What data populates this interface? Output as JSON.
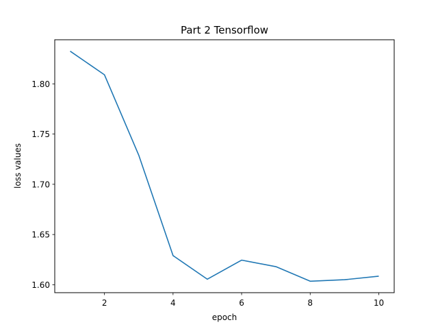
{
  "chart_data": {
    "type": "line",
    "title": "Part 2 Tensorflow",
    "xlabel": "epoch",
    "ylabel": "loss values",
    "x": [
      1,
      2,
      3,
      4,
      5,
      6,
      7,
      8,
      9,
      10
    ],
    "series": [
      {
        "values": [
          1.8325,
          1.809,
          1.729,
          1.629,
          1.6055,
          1.6245,
          1.618,
          1.6035,
          1.605,
          1.6085
        ],
        "color": "#1f77b4"
      }
    ],
    "xlim": [
      0.55,
      10.45
    ],
    "ylim": [
      1.5921,
      1.8439
    ],
    "xticks": [
      2,
      4,
      6,
      8,
      10
    ],
    "xtick_labels": [
      "2",
      "4",
      "6",
      "8",
      "10"
    ],
    "yticks": [
      1.6,
      1.65,
      1.7,
      1.75,
      1.8
    ],
    "ytick_labels": [
      "1.60",
      "1.65",
      "1.70",
      "1.75",
      "1.80"
    ],
    "grid": false,
    "legend": "none"
  }
}
